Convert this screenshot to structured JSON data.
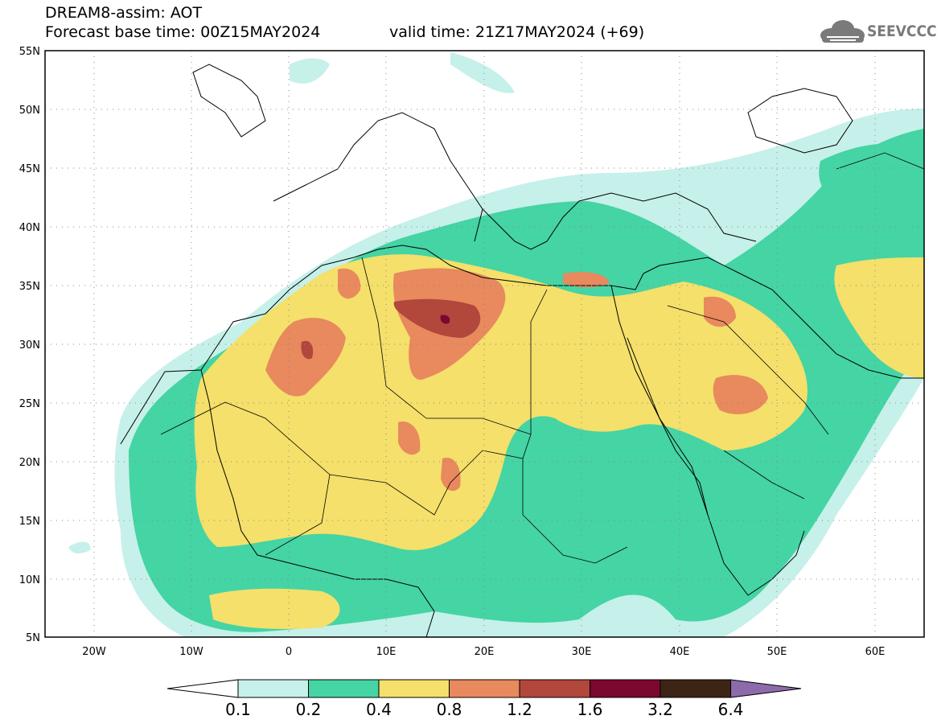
{
  "header": {
    "title_line1": "DREAM8-assim: AOT",
    "base_time": "Forecast base time: 00Z15MAY2024",
    "valid_time": "valid time: 21Z17MAY2024 (+69)",
    "logo_text": "SEEVCCC"
  },
  "map": {
    "variable": "AOT",
    "lon_range": [
      -25,
      65
    ],
    "lat_range": [
      5,
      55
    ],
    "lat_ticks": [
      "55N",
      "50N",
      "45N",
      "40N",
      "35N",
      "30N",
      "25N",
      "20N",
      "15N",
      "10N",
      "5N"
    ],
    "lon_ticks": [
      "20W",
      "10W",
      "0",
      "10E",
      "20E",
      "30E",
      "40E",
      "50E",
      "60E"
    ]
  },
  "colorbar": {
    "levels": [
      "0.1",
      "0.2",
      "0.4",
      "0.8",
      "1.2",
      "1.6",
      "3.2",
      "6.4"
    ],
    "colors": [
      "#ffffff",
      "#c6f0ea",
      "#45d4a4",
      "#f4e06a",
      "#e8895e",
      "#b2473c",
      "#7a0830",
      "#3d2516",
      "#8d6bab"
    ]
  }
}
